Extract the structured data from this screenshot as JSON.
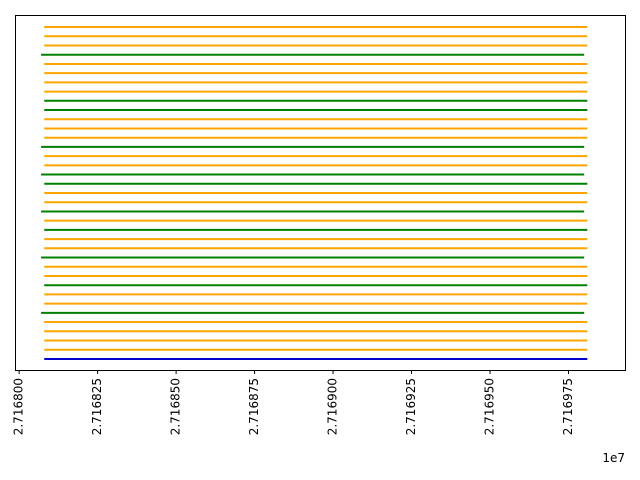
{
  "chart_data": {
    "type": "line",
    "title": "",
    "xlabel": "",
    "ylabel": "",
    "x_offset_label": "1e7",
    "xlim": [
      2.716799,
      2.716993
    ],
    "ylim": [
      -1.2,
      37.2
    ],
    "x_ticks": [
      2.7168,
      2.716825,
      2.71685,
      2.716875,
      2.7169,
      2.716925,
      2.71695,
      2.716975
    ],
    "x_tick_labels": [
      "2.716800",
      "2.716825",
      "2.716850",
      "2.716875",
      "2.716900",
      "2.716925",
      "2.716950",
      "2.716975"
    ],
    "y_ticks_shown": false,
    "grid": false,
    "legend": "none",
    "series_colors": {
      "blue": "#0000cc",
      "green": "#008000",
      "orange": "#ffa500"
    },
    "segments": [
      {
        "y": 0,
        "x_start": 2.716808,
        "x_end": 2.716981,
        "color": "blue"
      },
      {
        "y": 1,
        "x_start": 2.716808,
        "x_end": 2.716981,
        "color": "orange"
      },
      {
        "y": 2,
        "x_start": 2.716808,
        "x_end": 2.716981,
        "color": "orange"
      },
      {
        "y": 3,
        "x_start": 2.716808,
        "x_end": 2.716981,
        "color": "orange"
      },
      {
        "y": 4,
        "x_start": 2.716808,
        "x_end": 2.716981,
        "color": "orange"
      },
      {
        "y": 5,
        "x_start": 2.716807,
        "x_end": 2.71698,
        "color": "green"
      },
      {
        "y": 6,
        "x_start": 2.716808,
        "x_end": 2.716981,
        "color": "orange"
      },
      {
        "y": 7,
        "x_start": 2.716808,
        "x_end": 2.716981,
        "color": "orange"
      },
      {
        "y": 8,
        "x_start": 2.716808,
        "x_end": 2.716981,
        "color": "green"
      },
      {
        "y": 9,
        "x_start": 2.716808,
        "x_end": 2.716981,
        "color": "orange"
      },
      {
        "y": 10,
        "x_start": 2.716808,
        "x_end": 2.716981,
        "color": "orange"
      },
      {
        "y": 11,
        "x_start": 2.716807,
        "x_end": 2.71698,
        "color": "green"
      },
      {
        "y": 12,
        "x_start": 2.716808,
        "x_end": 2.716981,
        "color": "orange"
      },
      {
        "y": 13,
        "x_start": 2.716808,
        "x_end": 2.716981,
        "color": "orange"
      },
      {
        "y": 14,
        "x_start": 2.716808,
        "x_end": 2.716981,
        "color": "green"
      },
      {
        "y": 15,
        "x_start": 2.716808,
        "x_end": 2.716981,
        "color": "orange"
      },
      {
        "y": 16,
        "x_start": 2.716807,
        "x_end": 2.71698,
        "color": "green"
      },
      {
        "y": 17,
        "x_start": 2.716808,
        "x_end": 2.716981,
        "color": "orange"
      },
      {
        "y": 18,
        "x_start": 2.716808,
        "x_end": 2.716981,
        "color": "orange"
      },
      {
        "y": 19,
        "x_start": 2.716808,
        "x_end": 2.716981,
        "color": "green"
      },
      {
        "y": 20,
        "x_start": 2.716807,
        "x_end": 2.71698,
        "color": "green"
      },
      {
        "y": 21,
        "x_start": 2.716808,
        "x_end": 2.716981,
        "color": "orange"
      },
      {
        "y": 22,
        "x_start": 2.716808,
        "x_end": 2.716981,
        "color": "orange"
      },
      {
        "y": 23,
        "x_start": 2.716807,
        "x_end": 2.71698,
        "color": "green"
      },
      {
        "y": 24,
        "x_start": 2.716808,
        "x_end": 2.716981,
        "color": "orange"
      },
      {
        "y": 25,
        "x_start": 2.716808,
        "x_end": 2.716981,
        "color": "orange"
      },
      {
        "y": 26,
        "x_start": 2.716808,
        "x_end": 2.716981,
        "color": "orange"
      },
      {
        "y": 27,
        "x_start": 2.716808,
        "x_end": 2.716981,
        "color": "green"
      },
      {
        "y": 28,
        "x_start": 2.716808,
        "x_end": 2.716981,
        "color": "green"
      },
      {
        "y": 29,
        "x_start": 2.716808,
        "x_end": 2.716981,
        "color": "orange"
      },
      {
        "y": 30,
        "x_start": 2.716808,
        "x_end": 2.716981,
        "color": "orange"
      },
      {
        "y": 31,
        "x_start": 2.716808,
        "x_end": 2.716981,
        "color": "orange"
      },
      {
        "y": 32,
        "x_start": 2.716808,
        "x_end": 2.716981,
        "color": "orange"
      },
      {
        "y": 33,
        "x_start": 2.716807,
        "x_end": 2.71698,
        "color": "green"
      },
      {
        "y": 34,
        "x_start": 2.716808,
        "x_end": 2.716981,
        "color": "orange"
      },
      {
        "y": 35,
        "x_start": 2.716808,
        "x_end": 2.716981,
        "color": "orange"
      },
      {
        "y": 36,
        "x_start": 2.716808,
        "x_end": 2.716981,
        "color": "orange"
      }
    ]
  }
}
